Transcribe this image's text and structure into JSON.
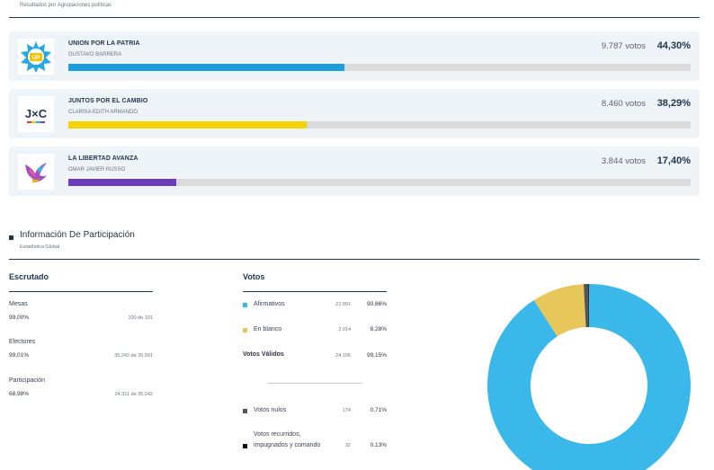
{
  "header": {
    "subtitle": "Resultados por Agrupaciones políticas"
  },
  "parties": [
    {
      "name": "UNION POR LA PATRIA",
      "candidate": "GUSTAVO BARRERA",
      "votes": "9.787 votos",
      "pct": "44,30%",
      "share": 0.443,
      "color": "#1a9fdc",
      "logo": "union-por-la-patria-logo",
      "logo_text": "UP"
    },
    {
      "name": "JUNTOS POR EL CAMBIO",
      "candidate": "CLARISA EDITH ARMANDO",
      "votes": "8.460 votos",
      "pct": "38,29%",
      "share": 0.3829,
      "color": "#f2d400",
      "logo": "juntos-por-el-cambio-logo",
      "logo_text": "J×C"
    },
    {
      "name": "LA LIBERTAD AVANZA",
      "candidate": "OMAR JAVIER RUSSO",
      "votes": "3.844 votos",
      "pct": "17,40%",
      "share": 0.174,
      "color": "#6c3cbf",
      "logo": "la-libertad-avanza-logo"
    }
  ],
  "participation": {
    "title": "Información De Participación",
    "subtitle": "Estadística Global"
  },
  "escrutado": {
    "heading": "Escrutado",
    "rows": [
      {
        "label": "Mesas",
        "pct": "99,00%",
        "detail": "100 de 101"
      },
      {
        "label": "Electores",
        "pct": "99,01%",
        "detail": "35.242 de 35.591"
      },
      {
        "label": "Participación",
        "pct": "68,98%",
        "detail": "24.311 de 35.242"
      }
    ]
  },
  "votos": {
    "heading": "Votos",
    "afirmativos": {
      "label": "Afirmativos",
      "count": "22.091",
      "pct": "90,86%",
      "color": "#3bb8ea"
    },
    "en_blanco": {
      "label": "En blanco",
      "count": "2.014",
      "pct": "8,28%",
      "color": "#e8c75a"
    },
    "validos": {
      "label": "Votos Válidos",
      "count": "24.105",
      "pct": "99,15%"
    },
    "nulos": {
      "label": "Votos nulos",
      "count": "174",
      "pct": "0,71%",
      "color": "#555555"
    },
    "recurridos": {
      "label": "Votos recurridos, impugnados y comando",
      "count": "32",
      "pct": "0,13%",
      "color": "#111111"
    }
  },
  "chart_data": {
    "type": "pie",
    "categories": [
      "Afirmativos",
      "En blanco",
      "Votos nulos",
      "Votos recurridos, impugnados y comando"
    ],
    "values": [
      90.86,
      8.28,
      0.71,
      0.13
    ],
    "colors": [
      "#3bb8ea",
      "#e8c75a",
      "#555555",
      "#111111"
    ]
  }
}
